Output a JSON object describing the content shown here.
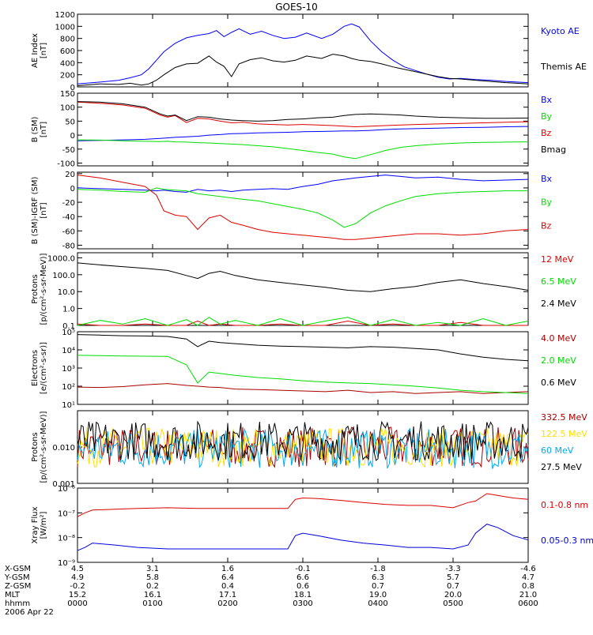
{
  "title": "GOES-10",
  "footer": {
    "rows": [
      {
        "label": "X-GSM",
        "values": [
          "4.5",
          "3.1",
          "1.6",
          "-0.1",
          "-1.8",
          "-3.3",
          "-4.6"
        ]
      },
      {
        "label": "Y-GSM",
        "values": [
          "4.9",
          "5.8",
          "6.4",
          "6.6",
          "6.3",
          "5.7",
          "4.7"
        ]
      },
      {
        "label": "Z-GSM",
        "values": [
          "-0.2",
          "0.2",
          "0.4",
          "0.6",
          "0.7",
          "0.7",
          "0.8"
        ]
      },
      {
        "label": "MLT",
        "values": [
          "15.2",
          "16.1",
          "17.1",
          "18.1",
          "19.0",
          "20.0",
          "21.0"
        ]
      },
      {
        "label": "hhmm",
        "values": [
          "0000",
          "0100",
          "0200",
          "0300",
          "0400",
          "0500",
          "0600"
        ]
      }
    ],
    "date": "2006 Apr 22"
  },
  "chart_data": [
    {
      "type": "line",
      "panel": "ae",
      "ylabel": [
        "AE Index",
        "[nT]"
      ],
      "ylim": [
        0,
        1200
      ],
      "yticks": [
        0,
        200,
        400,
        600,
        800,
        1000,
        1200
      ],
      "yticklabels": [
        "0",
        "200",
        "400",
        "600",
        "800",
        "1000",
        "1200"
      ],
      "x": [
        0,
        0.3,
        0.55,
        0.7,
        0.85,
        0.95,
        1.05,
        1.15,
        1.3,
        1.45,
        1.6,
        1.75,
        1.85,
        1.95,
        2.05,
        2.15,
        2.3,
        2.45,
        2.6,
        2.75,
        2.9,
        3.05,
        3.25,
        3.4,
        3.55,
        3.65,
        3.75,
        3.9,
        4.05,
        4.2,
        4.35,
        4.5,
        4.65,
        4.8,
        4.95,
        5.1,
        5.3,
        5.5,
        5.7,
        5.85,
        6.0
      ],
      "series": [
        {
          "name": "Kyoto AE",
          "color": "#0000ff",
          "values": [
            50,
            80,
            110,
            150,
            200,
            300,
            440,
            580,
            720,
            810,
            850,
            880,
            930,
            830,
            900,
            960,
            870,
            920,
            850,
            800,
            820,
            890,
            800,
            870,
            1000,
            1040,
            990,
            760,
            580,
            440,
            330,
            270,
            210,
            160,
            130,
            140,
            120,
            110,
            90,
            80,
            70
          ]
        },
        {
          "name": "Themis AE",
          "color": "#000000",
          "values": [
            20,
            50,
            40,
            60,
            30,
            50,
            110,
            200,
            320,
            380,
            390,
            510,
            410,
            340,
            170,
            380,
            450,
            480,
            430,
            410,
            440,
            510,
            470,
            540,
            510,
            470,
            440,
            420,
            380,
            330,
            290,
            250,
            210,
            170,
            140,
            130,
            110,
            90,
            70,
            60,
            50
          ]
        }
      ]
    },
    {
      "type": "line",
      "panel": "b",
      "ylabel": [
        "B (SM)",
        "[nT]"
      ],
      "ylim": [
        -110,
        150
      ],
      "yticks": [
        -100,
        -50,
        0,
        50,
        100,
        150
      ],
      "yticklabels": [
        "-100",
        "-50",
        "0",
        "50",
        "100",
        "150"
      ],
      "x": [
        0,
        0.3,
        0.6,
        0.9,
        1.1,
        1.2,
        1.3,
        1.45,
        1.6,
        1.75,
        1.9,
        2.05,
        2.2,
        2.4,
        2.6,
        2.8,
        3.0,
        3.2,
        3.4,
        3.55,
        3.7,
        3.9,
        4.1,
        4.3,
        4.5,
        4.8,
        5.1,
        5.4,
        5.7,
        6.0
      ],
      "series": [
        {
          "name": "Bx",
          "color": "#0000ff",
          "values": [
            -20,
            -19,
            -17,
            -15,
            -12,
            -10,
            -8,
            -6,
            -4,
            0,
            2,
            5,
            6,
            8,
            9,
            10,
            12,
            13,
            14,
            15,
            15,
            17,
            20,
            22,
            23,
            25,
            27,
            28,
            30,
            31
          ]
        },
        {
          "name": "By",
          "color": "#00dd00",
          "values": [
            -17,
            -18,
            -20,
            -22,
            -23,
            -22,
            -24,
            -25,
            -27,
            -28,
            -30,
            -32,
            -34,
            -38,
            -42,
            -48,
            -55,
            -62,
            -68,
            -78,
            -84,
            -70,
            -55,
            -44,
            -38,
            -32,
            -28,
            -26,
            -25,
            -24
          ]
        },
        {
          "name": "Bz",
          "color": "#dd0000",
          "values": [
            118,
            114,
            108,
            96,
            72,
            64,
            70,
            45,
            60,
            58,
            50,
            44,
            46,
            40,
            38,
            36,
            38,
            36,
            34,
            32,
            30,
            32,
            34,
            36,
            38,
            40,
            42,
            44,
            46,
            48
          ]
        },
        {
          "name": "Bmag",
          "color": "#000000",
          "values": [
            120,
            118,
            112,
            100,
            76,
            68,
            72,
            52,
            66,
            64,
            58,
            54,
            52,
            50,
            52,
            56,
            58,
            62,
            64,
            70,
            74,
            76,
            74,
            72,
            68,
            64,
            62,
            60,
            60,
            61
          ]
        }
      ]
    },
    {
      "type": "line",
      "panel": "bdiff",
      "ylabel": [
        "B (SM)-IGRF (SM)",
        "[nT]"
      ],
      "ylim": [
        -85,
        22
      ],
      "yticks": [
        -80,
        -60,
        -40,
        -20,
        0,
        20
      ],
      "yticklabels": [
        "-80",
        "-60",
        "-40",
        "-20",
        "0",
        "20"
      ],
      "x": [
        0,
        0.3,
        0.6,
        0.9,
        1.05,
        1.15,
        1.3,
        1.45,
        1.6,
        1.75,
        1.9,
        2.05,
        2.2,
        2.4,
        2.6,
        2.8,
        3.0,
        3.2,
        3.4,
        3.55,
        3.7,
        3.9,
        4.1,
        4.3,
        4.5,
        4.8,
        5.1,
        5.4,
        5.7,
        6.0
      ],
      "series": [
        {
          "name": "Bx",
          "color": "#0000ff",
          "values": [
            0,
            -1,
            -2,
            -3,
            -4,
            -3,
            -5,
            -6,
            -2,
            -4,
            -3,
            -5,
            -3,
            -2,
            -1,
            -2,
            2,
            5,
            10,
            12,
            14,
            16,
            18,
            16,
            14,
            15,
            12,
            10,
            11,
            12
          ]
        },
        {
          "name": "By",
          "color": "#00dd00",
          "values": [
            -2,
            -3,
            -5,
            -6,
            0,
            -2,
            -3,
            -4,
            -8,
            -10,
            -12,
            -14,
            -16,
            -18,
            -22,
            -26,
            -30,
            -35,
            -45,
            -55,
            -50,
            -35,
            -25,
            -18,
            -12,
            -8,
            -6,
            -5,
            -4,
            -4
          ]
        },
        {
          "name": "Bz",
          "color": "#dd0000",
          "values": [
            18,
            14,
            8,
            2,
            -10,
            -32,
            -38,
            -40,
            -58,
            -42,
            -38,
            -48,
            -52,
            -58,
            -62,
            -64,
            -66,
            -68,
            -70,
            -72,
            -72,
            -70,
            -68,
            -66,
            -64,
            -64,
            -66,
            -64,
            -60,
            -58
          ]
        }
      ]
    },
    {
      "type": "line",
      "panel": "protons",
      "yscale": "log",
      "ylabel": [
        "Protons",
        "[p/(cm²-s-sr-MeV)]"
      ],
      "ylim": [
        0.1,
        2000
      ],
      "yticks": [
        0.1,
        1,
        10,
        100,
        1000
      ],
      "yticklabels": [
        "0.1",
        "1.0",
        "10.0",
        "100.0",
        "1000.0"
      ],
      "x": [
        0,
        0.3,
        0.6,
        0.9,
        1.2,
        1.45,
        1.6,
        1.75,
        1.9,
        2.1,
        2.4,
        2.7,
        3.0,
        3.3,
        3.6,
        3.9,
        4.2,
        4.5,
        4.8,
        5.1,
        5.4,
        5.7,
        6.0
      ],
      "series": [
        {
          "name": "12 MeV",
          "color": "#dd0000",
          "values": [
            0.12,
            0.1,
            0.1,
            0.12,
            0.1,
            0.1,
            0.18,
            0.1,
            0.12,
            0.1,
            0.1,
            0.12,
            0.1,
            0.1,
            0.18,
            0.1,
            0.12,
            0.1,
            0.1,
            0.15,
            0.1,
            0.1,
            0.1
          ]
        },
        {
          "name": "6.5 MeV",
          "color": "#00dd00",
          "values": [
            0.1,
            0.2,
            0.12,
            0.25,
            0.1,
            0.22,
            0.1,
            0.3,
            0.12,
            0.2,
            0.1,
            0.25,
            0.1,
            0.18,
            0.3,
            0.1,
            0.22,
            0.1,
            0.15,
            0.1,
            0.25,
            0.1,
            0.18
          ]
        },
        {
          "name": "2.4 MeV",
          "color": "#000000",
          "values": [
            500,
            380,
            300,
            240,
            180,
            90,
            60,
            120,
            160,
            90,
            50,
            35,
            25,
            18,
            12,
            10,
            15,
            20,
            35,
            50,
            30,
            20,
            12
          ]
        }
      ]
    },
    {
      "type": "line",
      "panel": "electrons",
      "yscale": "log",
      "ylabel": [
        "Electrons",
        "[e/(cm²-s-sr)]"
      ],
      "ylim": [
        10,
        100000
      ],
      "yticks": [
        10,
        100,
        1000,
        10000,
        100000
      ],
      "yticklabels": [
        "10¹",
        "10²",
        "10³",
        "10⁴",
        "10⁵"
      ],
      "x": [
        0,
        0.3,
        0.6,
        0.9,
        1.2,
        1.45,
        1.6,
        1.75,
        1.9,
        2.1,
        2.4,
        2.7,
        3.0,
        3.3,
        3.6,
        3.9,
        4.2,
        4.5,
        4.8,
        5.1,
        5.4,
        5.7,
        6.0
      ],
      "series": [
        {
          "name": "4.0 MeV",
          "color": "#aa0000",
          "values": [
            90,
            85,
            95,
            120,
            140,
            110,
            100,
            90,
            85,
            70,
            65,
            60,
            55,
            50,
            60,
            45,
            50,
            40,
            45,
            50,
            40,
            45,
            50
          ]
        },
        {
          "name": "2.0 MeV",
          "color": "#00dd00",
          "values": [
            5000,
            4800,
            4600,
            4500,
            4400,
            1500,
            150,
            600,
            500,
            400,
            300,
            250,
            200,
            170,
            150,
            140,
            120,
            100,
            80,
            60,
            50,
            45,
            40
          ]
        },
        {
          "name": "0.6 MeV",
          "color": "#000000",
          "values": [
            70000,
            65000,
            60000,
            58000,
            55000,
            40000,
            15000,
            30000,
            25000,
            22000,
            18000,
            16000,
            15000,
            14000,
            13000,
            15000,
            14000,
            12000,
            10000,
            6000,
            4000,
            3000,
            2500
          ]
        }
      ]
    },
    {
      "type": "line",
      "panel": "protons_hi",
      "yscale": "log",
      "ylabel": [
        "Protons",
        "[p/(cm²-s-sr-MeV)]"
      ],
      "ylim": [
        0.001,
        0.1
      ],
      "yticks": [
        0.001,
        0.01,
        0.1
      ],
      "yticklabels": [
        "0.001",
        "0.010",
        ""
      ],
      "noise": true,
      "series": [
        {
          "name": "332.5 MeV",
          "color": "#aa0000",
          "center": 0.01
        },
        {
          "name": "122.5 MeV",
          "color": "#ffdd00",
          "center": 0.01
        },
        {
          "name": "60 MeV",
          "color": "#00aaee",
          "center": 0.009
        },
        {
          "name": "27.5 MeV",
          "color": "#000000",
          "center": 0.015
        }
      ]
    },
    {
      "type": "line",
      "panel": "xray",
      "yscale": "log",
      "ylabel": [
        "Xray Flux",
        "[W/m²]"
      ],
      "ylim": [
        1e-09,
        1e-06
      ],
      "yticks": [
        1e-09,
        1e-08,
        1e-07,
        1e-06
      ],
      "yticklabels": [
        "10⁻⁹",
        "10⁻⁸",
        "10⁻⁷",
        "10⁻⁶"
      ],
      "x": [
        0,
        0.1,
        0.2,
        0.5,
        0.8,
        1.2,
        1.6,
        2.0,
        2.4,
        2.8,
        2.9,
        3.0,
        3.2,
        3.5,
        3.8,
        4.1,
        4.4,
        4.7,
        5.0,
        5.2,
        5.3,
        5.45,
        5.6,
        5.8,
        6.0
      ],
      "series": [
        {
          "name": "0.1-0.8 nm",
          "color": "#dd0000",
          "values": [
            7e-08,
            1e-07,
            1.3e-07,
            1.4e-07,
            1.5e-07,
            1.6e-07,
            1.5e-07,
            1.5e-07,
            1.5e-07,
            1.5e-07,
            3.5e-07,
            4e-07,
            3.8e-07,
            3.2e-07,
            2.6e-07,
            2.2e-07,
            2e-07,
            2e-07,
            1.6e-07,
            2.6e-07,
            3e-07,
            6e-07,
            5e-07,
            4e-07,
            3.5e-07
          ]
        },
        {
          "name": "0.05-0.3 nm",
          "color": "#0000dd",
          "values": [
            3e-09,
            4e-09,
            6e-09,
            5e-09,
            4e-09,
            3.5e-09,
            3.5e-09,
            3.5e-09,
            3.5e-09,
            3.5e-09,
            1.2e-08,
            1.5e-08,
            1.2e-08,
            8e-09,
            6e-09,
            5e-09,
            4e-09,
            4e-09,
            3.5e-09,
            5e-09,
            1.5e-08,
            3.5e-08,
            2.5e-08,
            1.2e-08,
            8e-09
          ]
        }
      ]
    }
  ]
}
